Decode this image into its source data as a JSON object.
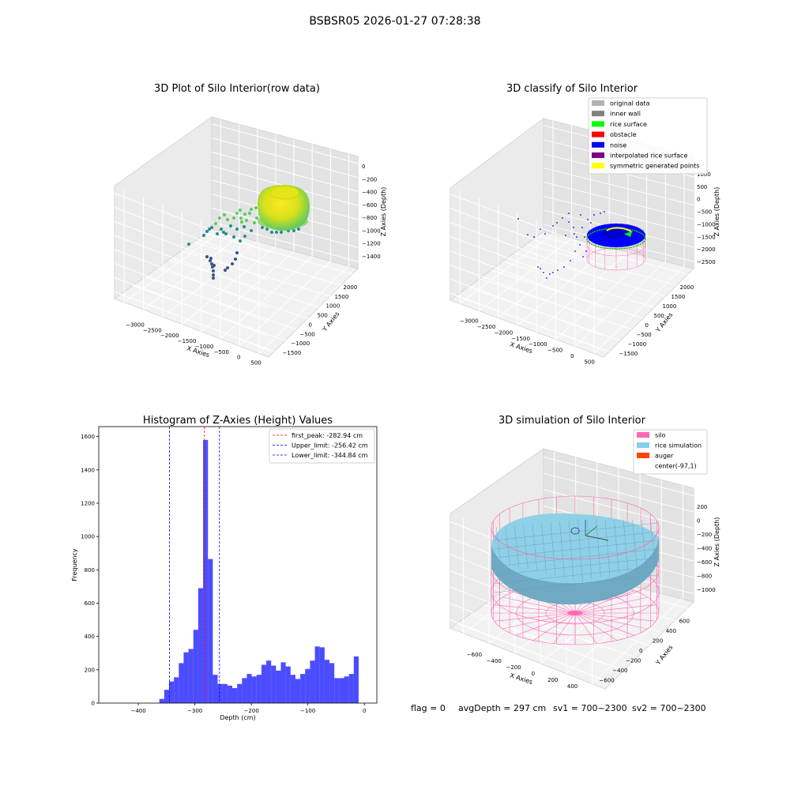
{
  "suptitle": "BSBSR05 2026-01-27 07:28:38",
  "footer": {
    "flag": "flag = 0",
    "avg_depth": "avgDepth = 297 cm",
    "sv1": "sv1 = 700~2300",
    "sv2": "sv2 = 700~2300"
  },
  "chart_data": [
    {
      "type": "scatter",
      "panel": "top-left",
      "title": "3D Plot of Silo Interior(row data)",
      "xlabel": "X Axies",
      "ylabel": "Y Axies",
      "zlabel": "Z Axies (Depth)",
      "x_ticks": [
        "−3000",
        "−2500",
        "−2000",
        "−1500",
        "−1000",
        "−500",
        "0",
        "500"
      ],
      "y_ticks": [
        "−1500",
        "−1000",
        "−500",
        "0",
        "500",
        "1000",
        "1500",
        "2000"
      ],
      "z_ticks": [
        "0",
        "−200",
        "−400",
        "−600",
        "−800",
        "−1000",
        "−1200",
        "−1400"
      ],
      "grid": true,
      "colors": {
        "low": "#3b528b",
        "mid": "#21918c",
        "high": "#fde725"
      }
    },
    {
      "type": "scatter",
      "panel": "top-right",
      "title": "3D classify of Silo Interior",
      "xlabel": "X Axies",
      "ylabel": "Y Axies",
      "zlabel": "Z Axies (Depth)",
      "x_ticks": [
        "−3000",
        "−2500",
        "−2000",
        "−1500",
        "−1000",
        "−500",
        "0",
        "500"
      ],
      "y_ticks": [
        "−1500",
        "−1000",
        "−500",
        "0",
        "500",
        "1000",
        "1500",
        "2000"
      ],
      "z_ticks": [
        "1000",
        "500",
        "0",
        "−500",
        "−1000",
        "−1500",
        "−2000",
        "−2500"
      ],
      "grid": true,
      "legend_position": "top-right",
      "legend": [
        {
          "label": "original data",
          "color": "#b3b3b3"
        },
        {
          "label": "inner wall",
          "color": "#808080"
        },
        {
          "label": "rice surface",
          "color": "#00ff00"
        },
        {
          "label": "obstacle",
          "color": "#ff0000"
        },
        {
          "label": "noise",
          "color": "#0000ff"
        },
        {
          "label": "interpolated rice surface",
          "color": "#800080"
        },
        {
          "label": "symmetric generated points",
          "color": "#ffff00"
        }
      ]
    },
    {
      "type": "bar",
      "panel": "bottom-left",
      "title": "Histogram of Z-Axies (Height) Values",
      "xlabel": "Depth (cm)",
      "ylabel": "Frequency",
      "xlim": [
        -470,
        22
      ],
      "ylim": [
        0,
        1660
      ],
      "x_tick_values": [
        -400,
        -300,
        -200,
        -100,
        0
      ],
      "x_tick_labels": [
        "−400",
        "−300",
        "−200",
        "−100",
        "0"
      ],
      "y_tick_values": [
        0,
        200,
        400,
        600,
        800,
        1000,
        1200,
        1400,
        1600
      ],
      "y_tick_labels": [
        "0",
        "200",
        "400",
        "600",
        "800",
        "1000",
        "1200",
        "1400",
        "1600"
      ],
      "bin_start": -362.8,
      "bin_width": 8.6,
      "values": [
        25,
        80,
        130,
        155,
        240,
        305,
        325,
        440,
        690,
        1580,
        865,
        170,
        115,
        115,
        105,
        90,
        115,
        150,
        175,
        160,
        170,
        230,
        255,
        225,
        195,
        245,
        220,
        170,
        145,
        175,
        205,
        255,
        340,
        335,
        260,
        240,
        150,
        150,
        160,
        175,
        280
      ],
      "bar_color": "#0000ff",
      "bar_opacity": 0.7,
      "vlines": [
        {
          "label": "first_peak: -282.94 cm",
          "x": -282.94,
          "color": "#ff0000"
        },
        {
          "label": "Upper_limit: -256.42 cm",
          "x": -256.42,
          "color": "#0000ff"
        },
        {
          "label": "Lower_limit: -344.84 cm",
          "x": -344.84,
          "color": "#0000ff"
        }
      ],
      "legend_position": "top-right",
      "grid": false
    },
    {
      "type": "surface",
      "panel": "bottom-right",
      "title": "3D simulation of Silo Interior",
      "xlabel": "X Axies",
      "ylabel": "Y Axies",
      "zlabel": "Z Axies (Depth)",
      "x_ticks": [
        "−600",
        "−400",
        "−200",
        "0",
        "200",
        "400"
      ],
      "y_ticks": [
        "−600",
        "−400",
        "−200",
        "0",
        "200",
        "400",
        "600"
      ],
      "z_ticks": [
        "200",
        "0",
        "−200",
        "−400",
        "−600",
        "−800",
        "−1000"
      ],
      "grid": true,
      "legend_position": "top-right",
      "legend": [
        {
          "label": "silo",
          "color": "#ff69b4"
        },
        {
          "label": "rice simulation",
          "color": "#87ceeb"
        },
        {
          "label": "auger",
          "color": "#ff4500"
        },
        {
          "label": "center(-97,1)",
          "color": ""
        }
      ]
    }
  ]
}
